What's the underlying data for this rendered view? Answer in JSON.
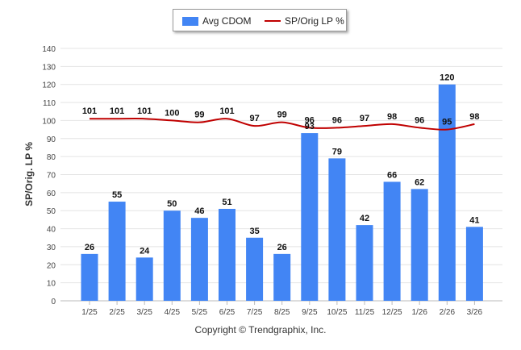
{
  "chart_data": {
    "type": "bar",
    "categories": [
      "1/25",
      "2/25",
      "3/25",
      "4/25",
      "5/25",
      "6/25",
      "7/25",
      "8/25",
      "9/25",
      "10/25",
      "11/25",
      "12/25",
      "1/26",
      "2/26",
      "3/26"
    ],
    "series": [
      {
        "name": "Avg CDOM",
        "kind": "bar",
        "color": "#4285f4",
        "values": [
          26,
          55,
          24,
          50,
          46,
          51,
          35,
          26,
          93,
          79,
          42,
          66,
          62,
          120,
          41
        ]
      },
      {
        "name": "SP/Orig LP %",
        "kind": "line",
        "color": "#c00000",
        "values": [
          101,
          101,
          101,
          100,
          99,
          101,
          97,
          99,
          96,
          96,
          97,
          98,
          96,
          95,
          98
        ]
      }
    ],
    "ylabel": "SP/Orig. LP %",
    "xlabel": "",
    "ylim": [
      0,
      140
    ],
    "yticks": [
      0,
      10,
      20,
      30,
      40,
      50,
      60,
      70,
      80,
      90,
      100,
      110,
      120,
      130,
      140
    ],
    "grid": true,
    "legend_position": "top-center"
  },
  "footer": {
    "copyright": "Copyright © Trendgraphix, Inc."
  }
}
